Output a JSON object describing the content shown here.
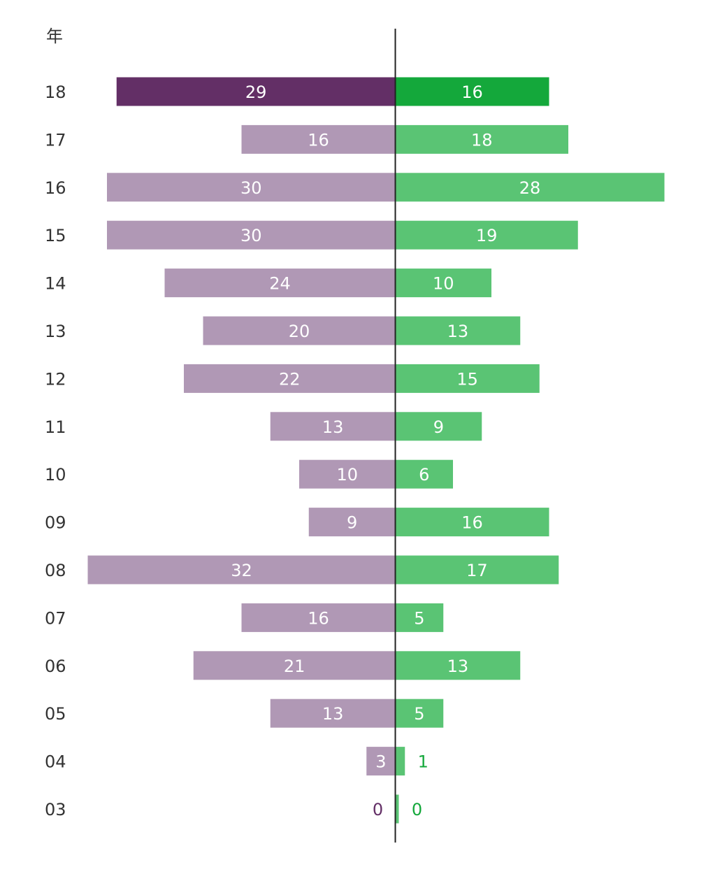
{
  "chart_data": {
    "type": "bar",
    "orientation": "horizontal-diverging",
    "y_axis_title": "年",
    "categories": [
      "18",
      "17",
      "16",
      "15",
      "14",
      "13",
      "12",
      "11",
      "10",
      "09",
      "08",
      "07",
      "06",
      "05",
      "04",
      "03"
    ],
    "series": [
      {
        "name": "left",
        "side": "left",
        "values": [
          29,
          16,
          30,
          30,
          24,
          20,
          22,
          13,
          10,
          9,
          32,
          16,
          21,
          13,
          3,
          0
        ]
      },
      {
        "name": "right",
        "side": "right",
        "values": [
          16,
          18,
          28,
          19,
          10,
          13,
          15,
          9,
          6,
          16,
          17,
          5,
          13,
          5,
          1,
          0
        ]
      }
    ],
    "highlight_category": "18",
    "colors": {
      "left": "#b098b5",
      "left_highlight": "#632f66",
      "right": "#5ac474",
      "right_highlight": "#14a83b",
      "axis": "#222222",
      "label_inside": "#ffffff",
      "label_outside_left": "#632f66",
      "label_outside_right": "#14a83b"
    }
  }
}
